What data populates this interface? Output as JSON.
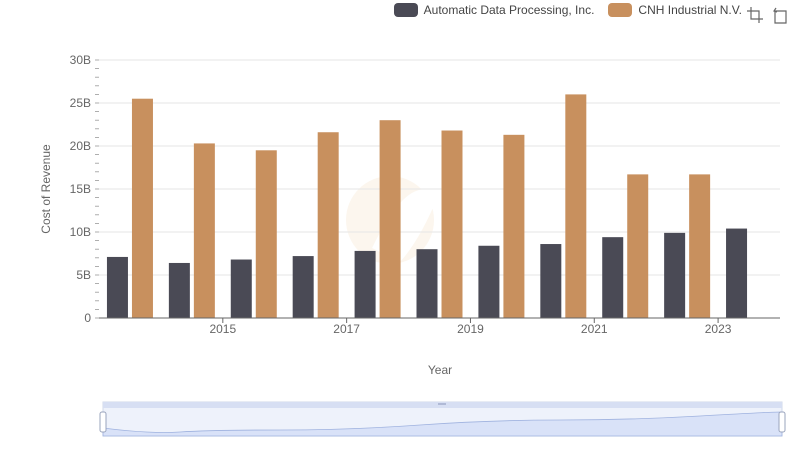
{
  "legend": {
    "items": [
      {
        "label": "Automatic Data Processing, Inc.",
        "color": "#4a4a55"
      },
      {
        "label": "CNH Industrial N.V.",
        "color": "#c8905e"
      }
    ]
  },
  "toolbar": {
    "icons": [
      "zoom-select-icon",
      "zoom-reset-icon"
    ]
  },
  "chart_data": {
    "type": "bar",
    "xlabel": "Year",
    "ylabel": "Cost of Revenue",
    "ylim": [
      0,
      30000000000
    ],
    "yticks": [
      {
        "value": 0,
        "label": "0"
      },
      {
        "value": 5000000000,
        "label": "5B"
      },
      {
        "value": 10000000000,
        "label": "10B"
      },
      {
        "value": 15000000000,
        "label": "15B"
      },
      {
        "value": 20000000000,
        "label": "20B"
      },
      {
        "value": 25000000000,
        "label": "25B"
      },
      {
        "value": 30000000000,
        "label": "30B"
      }
    ],
    "xticks": [
      "2015",
      "2017",
      "2019",
      "2021",
      "2023"
    ],
    "categories": [
      "2014",
      "2015",
      "2016",
      "2017",
      "2018",
      "2019",
      "2020",
      "2021",
      "2022",
      "2023",
      "2024"
    ],
    "series": [
      {
        "name": "Automatic Data Processing, Inc.",
        "color": "#4a4a55",
        "values": [
          7100000000,
          6400000000,
          6800000000,
          7200000000,
          7800000000,
          8000000000,
          8400000000,
          8600000000,
          9400000000,
          9900000000,
          10400000000
        ]
      },
      {
        "name": "CNH Industrial N.V.",
        "color": "#c8905e",
        "values": [
          25500000000,
          20300000000,
          19500000000,
          21600000000,
          23000000000,
          21800000000,
          21300000000,
          26000000000,
          16700000000,
          16700000000,
          null
        ]
      }
    ],
    "grid": true,
    "legend_position": "top-right"
  }
}
